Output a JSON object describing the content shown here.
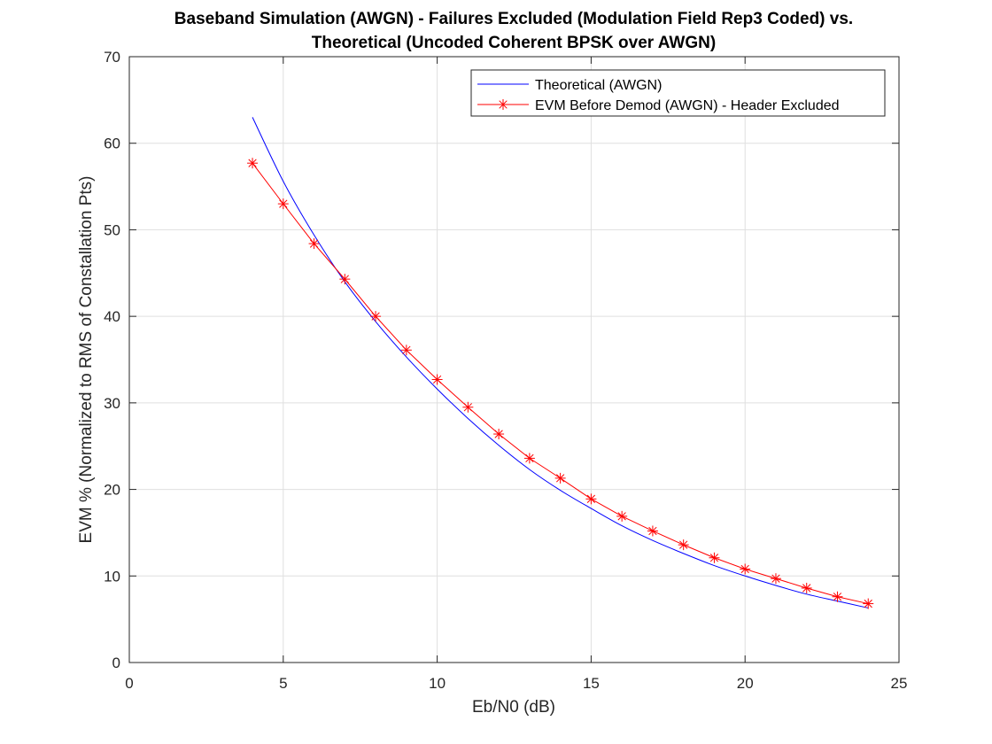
{
  "chart_data": {
    "type": "line",
    "title": [
      "Baseband Simulation (AWGN) - Failures Excluded (Modulation Field Rep3 Coded) vs.",
      "Theoretical (Uncoded Coherent BPSK over AWGN)"
    ],
    "xlabel": "Eb/N0 (dB)",
    "ylabel": "EVM % (Normalized to RMS of Constallation Pts)",
    "xlim": [
      0,
      25
    ],
    "ylim": [
      0,
      70
    ],
    "xticks": [
      0,
      5,
      10,
      15,
      20,
      25
    ],
    "yticks": [
      0,
      10,
      20,
      30,
      40,
      50,
      60,
      70
    ],
    "grid": true,
    "legend_position": "top-right",
    "series": [
      {
        "name": "Theoretical (AWGN)",
        "color": "#0000ff",
        "marker": "none",
        "x": [
          4,
          5,
          6,
          7,
          8,
          9,
          10,
          11,
          12,
          13,
          14,
          15,
          16,
          17,
          18,
          19,
          20,
          21,
          22,
          23,
          24
        ],
        "values": [
          63.0,
          55.6,
          49.4,
          44.0,
          39.4,
          35.3,
          31.6,
          28.2,
          25.1,
          22.3,
          19.9,
          17.8,
          15.8,
          14.1,
          12.6,
          11.2,
          10.0,
          8.9,
          7.9,
          7.1,
          6.3
        ]
      },
      {
        "name": "EVM Before Demod (AWGN) - Header Excluded",
        "color": "#ff0000",
        "marker": "asterisk",
        "x": [
          4,
          5,
          6,
          7,
          8,
          9,
          10,
          11,
          12,
          13,
          14,
          15,
          16,
          17,
          18,
          19,
          20,
          21,
          22,
          23,
          24
        ],
        "values": [
          57.7,
          53.0,
          48.4,
          44.3,
          40.0,
          36.1,
          32.7,
          29.5,
          26.4,
          23.6,
          21.3,
          18.9,
          16.9,
          15.2,
          13.6,
          12.1,
          10.8,
          9.7,
          8.6,
          7.6,
          6.8
        ]
      }
    ]
  }
}
